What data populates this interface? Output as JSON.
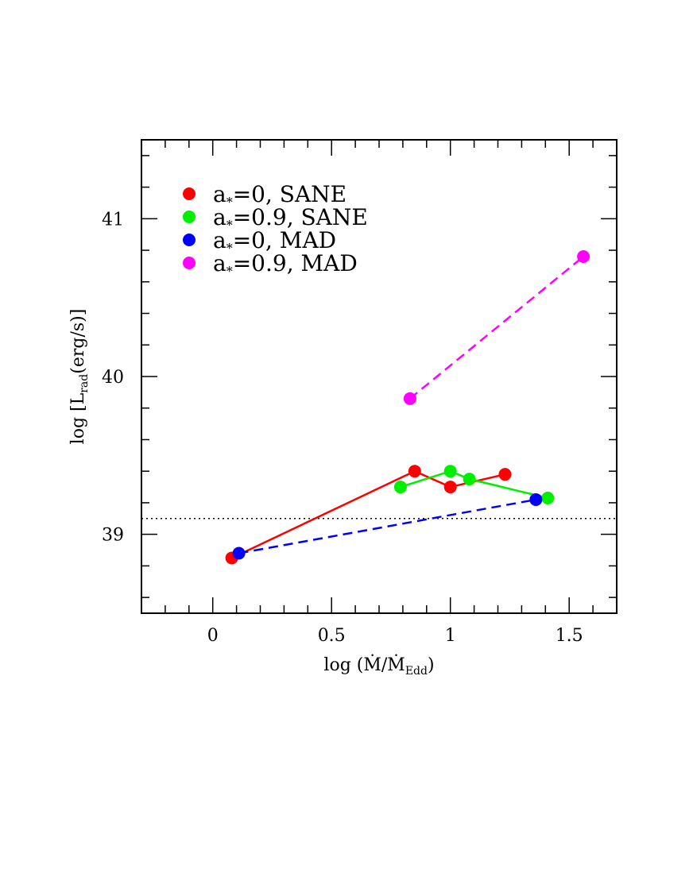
{
  "chart_data": {
    "type": "scatter",
    "xlabel": "log (Ṁ/Ṁ",
    "xlabel_sub": "Edd",
    "xlabel_close": ")",
    "ylabel_pre": "log [L",
    "ylabel_sub": "rad",
    "ylabel_post": "(erg/s)]",
    "xlim": [
      -0.3,
      1.7
    ],
    "ylim": [
      38.5,
      41.5
    ],
    "x_ticks": [
      "0",
      "0.5",
      "1",
      "1.5"
    ],
    "x_tick_values": [
      0,
      0.5,
      1,
      1.5
    ],
    "y_ticks": [
      "39",
      "40",
      "41"
    ],
    "y_tick_values": [
      39,
      40,
      41
    ],
    "x_minor_step": 0.1,
    "y_minor_step": 0.2,
    "grid": false,
    "legend_position": "top-left",
    "reference_line": {
      "y": 39.1,
      "style": "dotted",
      "color": "#000000"
    },
    "series": [
      {
        "name": "a*=0, SANE",
        "name_parts": [
          "a",
          "*",
          "=0,  SANE"
        ],
        "color": "#ff0000",
        "line": "solid",
        "x": [
          0.08,
          0.85,
          1.0,
          1.23
        ],
        "y": [
          38.85,
          39.4,
          39.3,
          39.38
        ]
      },
      {
        "name": "a*=0.9, SANE",
        "name_parts": [
          "a",
          "*",
          "=0.9,  SANE"
        ],
        "color": "#00ee00",
        "line": "solid",
        "x": [
          0.79,
          1.0,
          1.08,
          1.41
        ],
        "y": [
          39.3,
          39.4,
          39.35,
          39.23
        ]
      },
      {
        "name": "a*=0, MAD",
        "name_parts": [
          "a",
          "*",
          "=0,  MAD"
        ],
        "color": "#0000ff",
        "line": "dashed",
        "x": [
          0.11,
          1.36
        ],
        "y": [
          38.88,
          39.22
        ]
      },
      {
        "name": "a*=0.9, MAD",
        "name_parts": [
          "a",
          "*",
          "=0.9,  MAD"
        ],
        "color": "#ff00ff",
        "line": "dashed",
        "x": [
          0.83,
          1.56
        ],
        "y": [
          39.86,
          40.76
        ]
      }
    ]
  }
}
